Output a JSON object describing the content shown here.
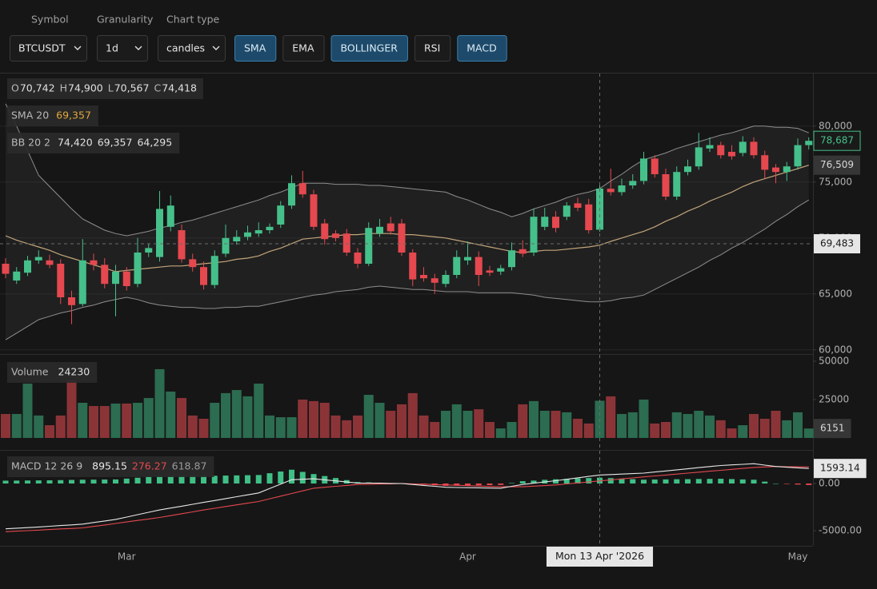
{
  "toolbar": {
    "fields": [
      {
        "label": "Symbol",
        "value": "BTCUSDT"
      },
      {
        "label": "Granularity",
        "value": "1d"
      },
      {
        "label": "Chart type",
        "value": "candles"
      }
    ],
    "toggles": [
      {
        "label": "SMA",
        "active": true
      },
      {
        "label": "EMA",
        "active": false
      },
      {
        "label": "BOLLINGER",
        "active": true
      },
      {
        "label": "RSI",
        "active": false
      },
      {
        "label": "MACD",
        "active": true
      }
    ]
  },
  "chart_data": [
    {
      "type": "candlestick",
      "categories": [
        null,
        null,
        null,
        null,
        null,
        null,
        null,
        null,
        null,
        null,
        null,
        "Mar",
        null,
        null,
        null,
        null,
        null,
        null,
        null,
        null,
        null,
        null,
        null,
        null,
        null,
        null,
        null,
        null,
        null,
        null,
        null,
        null,
        null,
        null,
        null,
        null,
        null,
        null,
        null,
        null,
        null,
        null,
        "Apr",
        null,
        null,
        null,
        null,
        null,
        null,
        null,
        null,
        null,
        null,
        null,
        null,
        null,
        null,
        null,
        null,
        null,
        null,
        null,
        null,
        null,
        null,
        null,
        null,
        null,
        null,
        null,
        null,
        null,
        "May",
        null
      ],
      "candles": [
        [
          67700,
          68200,
          66400,
          66800
        ],
        [
          66200,
          67400,
          65900,
          67000
        ],
        [
          66900,
          68400,
          66600,
          68000
        ],
        [
          68000,
          68900,
          67700,
          68300
        ],
        [
          68000,
          68500,
          67300,
          67600
        ],
        [
          67700,
          68100,
          64100,
          64700
        ],
        [
          64700,
          65300,
          62300,
          64000
        ],
        [
          64100,
          69900,
          63900,
          68000
        ],
        [
          68000,
          68600,
          67100,
          67600
        ],
        [
          67600,
          68200,
          65500,
          65900
        ],
        [
          65900,
          67600,
          63000,
          67000
        ],
        [
          67000,
          67400,
          65300,
          65700
        ],
        [
          65900,
          70000,
          65600,
          68700
        ],
        [
          68700,
          69500,
          68300,
          69100
        ],
        [
          68300,
          74200,
          67900,
          72600
        ],
        [
          71000,
          73800,
          70600,
          72900
        ],
        [
          70700,
          71200,
          67800,
          68100
        ],
        [
          68100,
          68600,
          67000,
          67400
        ],
        [
          67400,
          67900,
          65400,
          65800
        ],
        [
          65800,
          68900,
          65500,
          68400
        ],
        [
          68600,
          71200,
          68300,
          70000
        ],
        [
          69700,
          70700,
          69400,
          70100
        ],
        [
          70100,
          71100,
          69800,
          70500
        ],
        [
          70400,
          71400,
          70100,
          70700
        ],
        [
          70700,
          71300,
          70400,
          71000
        ],
        [
          71200,
          73300,
          70900,
          72900
        ],
        [
          72900,
          75600,
          72600,
          74900
        ],
        [
          74900,
          76000,
          73600,
          73900
        ],
        [
          73900,
          74300,
          70700,
          71000
        ],
        [
          71300,
          71700,
          69400,
          69900
        ],
        [
          70400,
          70700,
          69700,
          70000
        ],
        [
          70400,
          70800,
          68400,
          68700
        ],
        [
          68700,
          69100,
          67300,
          67700
        ],
        [
          67700,
          71400,
          67500,
          70900
        ],
        [
          70400,
          71700,
          70100,
          71000
        ],
        [
          71300,
          71900,
          70300,
          70600
        ],
        [
          71300,
          71700,
          68400,
          68700
        ],
        [
          68700,
          69000,
          65700,
          66300
        ],
        [
          66700,
          67400,
          66100,
          66400
        ],
        [
          66400,
          66800,
          65000,
          66000
        ],
        [
          65900,
          67100,
          65600,
          66700
        ],
        [
          66700,
          68900,
          66400,
          68300
        ],
        [
          68000,
          69700,
          67600,
          68300
        ],
        [
          68300,
          68800,
          65700,
          66700
        ],
        [
          67100,
          67500,
          66600,
          66900
        ],
        [
          67000,
          67600,
          66700,
          67300
        ],
        [
          67400,
          69600,
          67100,
          68900
        ],
        [
          69000,
          69800,
          68300,
          68600
        ],
        [
          68700,
          72600,
          68400,
          71900
        ],
        [
          71000,
          72700,
          70700,
          71900
        ],
        [
          71900,
          72400,
          70500,
          70900
        ],
        [
          71900,
          73200,
          71600,
          72900
        ],
        [
          73100,
          73600,
          72400,
          72700
        ],
        [
          73000,
          73500,
          70400,
          70700
        ],
        [
          70742,
          74900,
          70567,
          74418
        ],
        [
          74400,
          76200,
          73800,
          74100
        ],
        [
          74100,
          75300,
          73800,
          74700
        ],
        [
          74700,
          75700,
          74400,
          75100
        ],
        [
          75100,
          77700,
          74800,
          77100
        ],
        [
          77100,
          77400,
          75400,
          75700
        ],
        [
          75700,
          76200,
          73400,
          73700
        ],
        [
          73700,
          76400,
          73400,
          75900
        ],
        [
          75900,
          77000,
          75600,
          76400
        ],
        [
          76400,
          79400,
          76100,
          78100
        ],
        [
          78000,
          79000,
          77700,
          78300
        ],
        [
          78300,
          78600,
          77100,
          77400
        ],
        [
          77700,
          78300,
          77000,
          77300
        ],
        [
          77600,
          79100,
          77300,
          78600
        ],
        [
          78600,
          79000,
          77100,
          77400
        ],
        [
          77400,
          77800,
          75300,
          76100
        ],
        [
          76300,
          76600,
          74900,
          75900
        ],
        [
          75900,
          76800,
          75100,
          76400
        ],
        [
          76400,
          78900,
          76100,
          78300
        ],
        [
          78300,
          79000,
          77900,
          78687
        ]
      ],
      "up_color": "#45c08a",
      "down_color": "#e5484f",
      "ohlc_legend": [
        {
          "key": "O",
          "text": "70,742"
        },
        {
          "key": "H",
          "text": "74,900"
        },
        {
          "key": "L",
          "text": "70,567"
        },
        {
          "key": "C",
          "text": "74,418"
        }
      ],
      "last_label": "78,687",
      "sma": {
        "name": "SMA 20",
        "color": "#c2a57a",
        "hover_label": "69,357",
        "last_label": "76,509",
        "values": [
          70200,
          69800,
          69500,
          69200,
          68900,
          68500,
          68200,
          67900,
          67600,
          67300,
          67000,
          67100,
          67200,
          67300,
          67400,
          67500,
          67500,
          67600,
          67700,
          67800,
          67900,
          68100,
          68200,
          68400,
          68800,
          69100,
          69500,
          69900,
          70000,
          70100,
          70200,
          70300,
          70300,
          70400,
          70400,
          70400,
          70300,
          70300,
          70200,
          70100,
          70000,
          69800,
          69600,
          69400,
          69200,
          69000,
          68800,
          68700,
          68800,
          68900,
          68900,
          69000,
          69100,
          69200,
          69357,
          69700,
          70000,
          70300,
          70600,
          71000,
          71500,
          71900,
          72400,
          72800,
          73300,
          73700,
          74100,
          74600,
          75000,
          75300,
          75600,
          75900,
          76200,
          76509
        ]
      },
      "bollinger": {
        "name": "BB 20 2",
        "color": "#8e8e8e",
        "hover_labels": [
          "74,420",
          "69,357",
          "64,295"
        ],
        "upper": [
          82000,
          80000,
          77800,
          75600,
          74600,
          73600,
          72600,
          71700,
          71200,
          70700,
          70400,
          70200,
          70400,
          70600,
          70900,
          71100,
          71400,
          71600,
          71900,
          72200,
          72500,
          72800,
          73100,
          73400,
          73800,
          74100,
          74500,
          74900,
          74900,
          74900,
          74800,
          74800,
          74800,
          74700,
          74700,
          74600,
          74500,
          74400,
          74300,
          74200,
          74100,
          73700,
          73400,
          73000,
          72600,
          72300,
          71900,
          72200,
          72600,
          72900,
          73200,
          73600,
          73900,
          74100,
          74420,
          75100,
          75700,
          76400,
          77000,
          77300,
          77600,
          78000,
          78300,
          78600,
          78900,
          79200,
          79400,
          79700,
          80000,
          80000,
          79900,
          79900,
          79800,
          79400
        ],
        "lower": [
          60900,
          61500,
          62100,
          62700,
          63000,
          63300,
          63500,
          63800,
          64000,
          64300,
          64500,
          64700,
          64500,
          64200,
          64000,
          63900,
          63800,
          63800,
          63700,
          63700,
          63800,
          63800,
          63900,
          63900,
          64100,
          64300,
          64500,
          64700,
          64900,
          65000,
          65200,
          65300,
          65400,
          65600,
          65700,
          65600,
          65500,
          65400,
          65400,
          65300,
          65200,
          65200,
          65200,
          65100,
          65100,
          65100,
          65100,
          65000,
          64900,
          64700,
          64600,
          64500,
          64400,
          64300,
          64295,
          64400,
          64600,
          64700,
          64900,
          65400,
          65900,
          66400,
          66900,
          67400,
          68000,
          68500,
          69100,
          69600,
          70200,
          70800,
          71500,
          72100,
          72800,
          73400
        ]
      },
      "crosshair": {
        "price": 69483,
        "price_label": "69,483",
        "date_label": "Mon 13 Apr '2026"
      },
      "ylim": [
        59700,
        84700
      ],
      "yticks": [
        {
          "value": 80000,
          "label": "80,000"
        },
        {
          "value": 75000,
          "label": "75,000"
        },
        {
          "value": 70000,
          "label": "70,000"
        },
        {
          "value": 65000,
          "label": "65,000"
        },
        {
          "value": 60000,
          "label": "60,000"
        }
      ],
      "grid": true
    },
    {
      "type": "bar",
      "title": "Volume",
      "values": [
        15600,
        15600,
        35400,
        14600,
        8300,
        14600,
        37500,
        22900,
        20800,
        20800,
        22400,
        22400,
        22900,
        26000,
        44800,
        30200,
        26000,
        14600,
        12500,
        22900,
        29200,
        31200,
        27100,
        35400,
        14600,
        13500,
        13500,
        25000,
        24000,
        22900,
        14600,
        11500,
        14600,
        28100,
        22900,
        17700,
        21900,
        29200,
        14600,
        10400,
        17700,
        21900,
        17700,
        18700,
        10400,
        6200,
        10400,
        21900,
        24000,
        17700,
        17700,
        16700,
        12500,
        9400,
        24230,
        27100,
        15600,
        16700,
        25000,
        9400,
        10400,
        16700,
        15600,
        17700,
        14600,
        11500,
        6200,
        8300,
        15600,
        12500,
        17700,
        11500,
        16700,
        6151
      ],
      "up_color": "#2c6c51",
      "down_color": "#8b3438",
      "ylim": [
        -7300,
        53100
      ],
      "yticks": [
        50000,
        25000
      ]
    },
    {
      "type": "macd",
      "title": "MACD 12 26 9",
      "macd": {
        "color": "#e8e8e8",
        "values": [
          -4800,
          -4730,
          -4670,
          -4600,
          -4530,
          -4450,
          -4380,
          -4300,
          -4130,
          -3970,
          -3800,
          -3550,
          -3300,
          -3050,
          -2800,
          -2600,
          -2400,
          -2200,
          -2000,
          -1800,
          -1600,
          -1400,
          -1200,
          -1000,
          -530,
          -70,
          400,
          450,
          500,
          390,
          280,
          160,
          50,
          40,
          30,
          10,
          0,
          -100,
          -200,
          -300,
          -400,
          -420,
          -440,
          -460,
          -480,
          -500,
          -300,
          -100,
          30,
          170,
          300,
          450,
          600,
          750,
          895.15,
          950,
          1000,
          1050,
          1100,
          1220,
          1330,
          1450,
          1560,
          1680,
          1790,
          1900,
          1970,
          2030,
          2100,
          1950,
          1800,
          1730,
          1660,
          1593.14
        ]
      },
      "signal": {
        "color": "#e5484f",
        "values": [
          -5100,
          -5040,
          -4990,
          -4930,
          -4870,
          -4810,
          -4760,
          -4700,
          -4540,
          -4390,
          -4230,
          -4070,
          -3910,
          -3760,
          -3600,
          -3400,
          -3200,
          -3000,
          -2800,
          -2620,
          -2440,
          -2260,
          -2080,
          -1900,
          -1620,
          -1340,
          -1060,
          -780,
          -500,
          -400,
          -300,
          -200,
          -100,
          -80,
          -50,
          -30,
          0,
          -40,
          -70,
          -110,
          -150,
          -190,
          -230,
          -270,
          -310,
          -350,
          -350,
          -350,
          -280,
          -220,
          -150,
          -40,
          60,
          170,
          276.27,
          380,
          490,
          590,
          700,
          800,
          900,
          1000,
          1100,
          1200,
          1300,
          1400,
          1500,
          1600,
          1700,
          1750,
          1800,
          1780,
          1770,
          1750
        ]
      },
      "histogram": {
        "up_color": "#3fbf86",
        "down_color": "#e5484f",
        "text_color": "#9a9a9a",
        "values": [
          300,
          310,
          320,
          330,
          340,
          360,
          380,
          400,
          410,
          420,
          430,
          520,
          610,
          710,
          800,
          800,
          800,
          800,
          800,
          820,
          840,
          860,
          880,
          900,
          1090,
          1270,
          1460,
          1230,
          1000,
          790,
          580,
          360,
          150,
          120,
          80,
          40,
          0,
          -60,
          -130,
          -190,
          -250,
          -230,
          -210,
          -190,
          -170,
          -150,
          50,
          250,
          310,
          390,
          450,
          490,
          540,
          580,
          618.87,
          570,
          510,
          460,
          400,
          420,
          430,
          450,
          460,
          480,
          490,
          500,
          470,
          430,
          400,
          200,
          0,
          -50,
          -110,
          -157
        ]
      },
      "ylim": [
        -6600,
        3300
      ],
      "yticks": [
        {
          "value": 0,
          "label": "0.00"
        },
        {
          "value": -5000,
          "label": "-5000.00"
        }
      ]
    }
  ]
}
